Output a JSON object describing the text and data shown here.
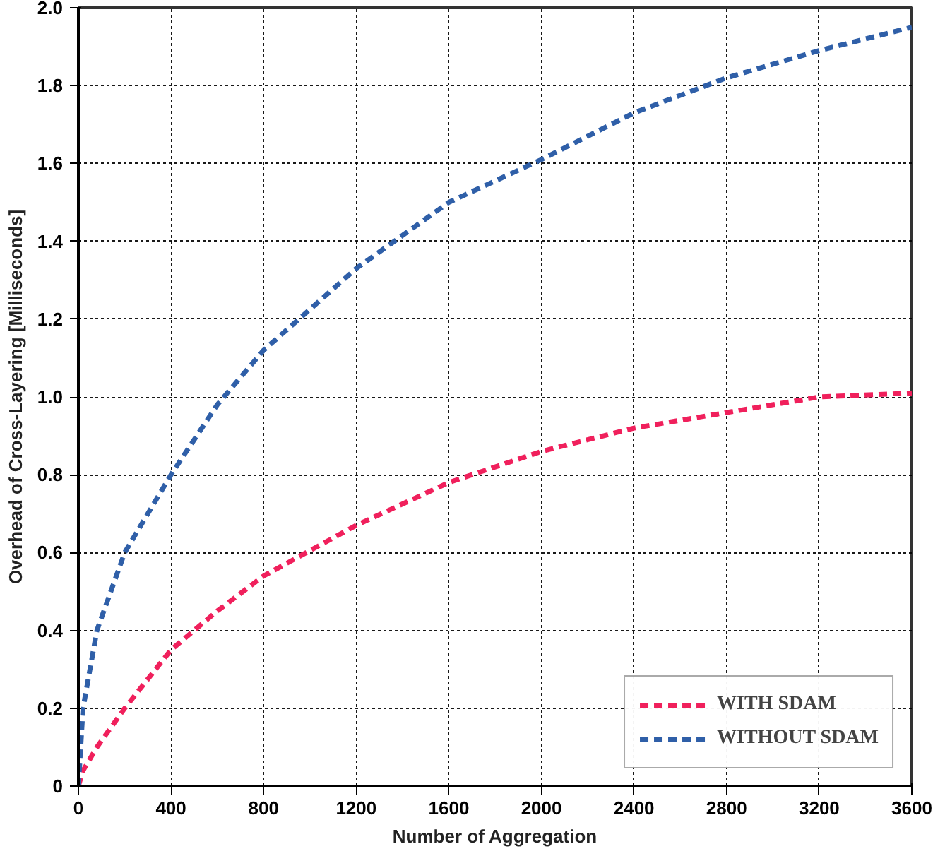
{
  "chart_data": {
    "type": "line",
    "xlabel": "Number of Aggregation",
    "ylabel": "Overhead of Cross-Layering [Milliseconds]",
    "x": [
      0,
      20,
      80,
      200,
      400,
      600,
      800,
      1200,
      1600,
      2000,
      2400,
      2800,
      3200,
      3600
    ],
    "series": [
      {
        "name": "WITH SDAM",
        "color": "#f0205c",
        "values": [
          0,
          0.04,
          0.1,
          0.2,
          0.35,
          0.45,
          0.54,
          0.67,
          0.78,
          0.86,
          0.92,
          0.96,
          1.0,
          1.01
        ]
      },
      {
        "name": "WITHOUT SDAM",
        "color": "#2f5fa8",
        "values": [
          0,
          0.2,
          0.4,
          0.6,
          0.8,
          0.98,
          1.12,
          1.33,
          1.5,
          1.61,
          1.73,
          1.82,
          1.89,
          1.95
        ]
      }
    ],
    "xlim": [
      0,
      3600
    ],
    "xticks": [
      0,
      400,
      800,
      1200,
      1600,
      2000,
      2400,
      2800,
      3200,
      3600
    ],
    "ylim": [
      0,
      2
    ],
    "yticks": [
      0,
      0.2,
      0.4,
      0.6,
      0.8,
      {
        "value": 1,
        "label": "1.0"
      },
      1.2,
      1.4,
      1.6,
      1.8,
      {
        "value": 2,
        "label": "2.0"
      }
    ],
    "grid": true,
    "legend": "bottom right",
    "line_style": "dashed",
    "marker": "none"
  }
}
